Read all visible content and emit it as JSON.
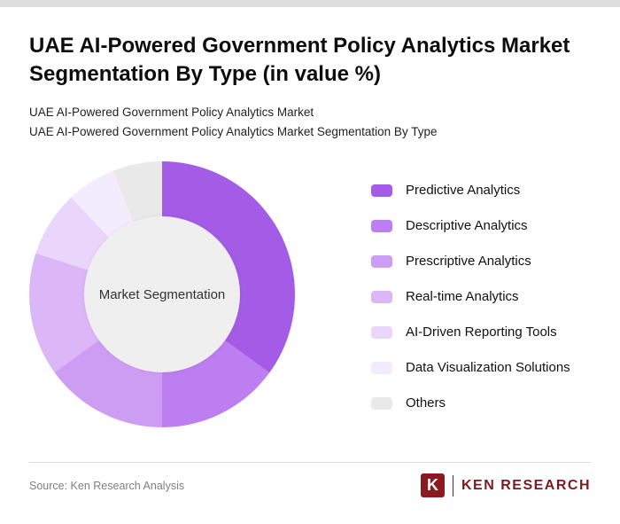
{
  "page": {
    "title": "UAE AI-Powered Government Policy Analytics Market Segmentation By Type (in value %)",
    "subtitle_line1": "UAE AI-Powered Government Policy Analytics Market",
    "subtitle_line2": "UAE AI-Powered Government Policy Analytics Market Segmentation By Type"
  },
  "chart_data": {
    "type": "pie",
    "donut": true,
    "title": "UAE AI-Powered Government Policy Analytics Market Segmentation By Type (in value %)",
    "center_label": "Market Segmentation",
    "legend_position": "right",
    "categories": [
      "Predictive Analytics",
      "Descriptive Analytics",
      "Prescriptive Analytics",
      "Real-time Analytics",
      "AI-Driven Reporting Tools",
      "Data Visualization Solutions",
      "Others"
    ],
    "values": [
      35,
      15,
      15,
      15,
      8,
      6,
      6
    ],
    "colors": [
      "#a45ce6",
      "#bc7ef0",
      "#cd9df4",
      "#dbb7f8",
      "#ead6fb",
      "#f3ecfd",
      "#e9e9e9"
    ],
    "hole_color": "#efefef"
  },
  "footer": {
    "source": "Source: Ken Research Analysis",
    "logo_letter": "K",
    "logo_text": "KEN RESEARCH",
    "brand_color": "#8b1a1e"
  }
}
